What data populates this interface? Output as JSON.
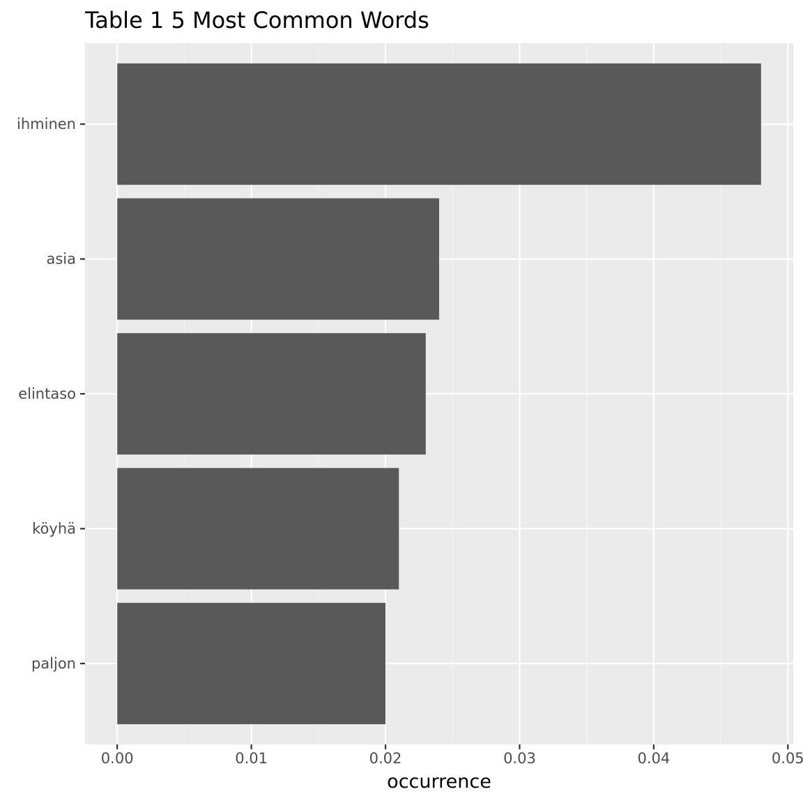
{
  "chart_data": {
    "type": "bar",
    "orientation": "horizontal",
    "title": "Table 1 5 Most Common Words",
    "xlabel": "occurrence",
    "ylabel": "",
    "categories": [
      "ihminen",
      "asia",
      "elintaso",
      "köyhä",
      "paljon"
    ],
    "values": [
      0.048,
      0.024,
      0.023,
      0.021,
      0.02
    ],
    "xlim": [
      -0.0024,
      0.0504
    ],
    "x_ticks": [
      0.0,
      0.01,
      0.02,
      0.03,
      0.04,
      0.05
    ],
    "x_tick_labels": [
      "0.00",
      "0.01",
      "0.02",
      "0.03",
      "0.04",
      "0.05"
    ],
    "grid": true,
    "legend": "none"
  },
  "colors": {
    "panel_background": "#ebebeb",
    "grid_major": "#ffffff",
    "grid_minor": "#f5f5f5",
    "bar_fill": "#595959",
    "tick_mark": "#333333",
    "tick_label": "#4d4d4d",
    "text": "#000000"
  }
}
